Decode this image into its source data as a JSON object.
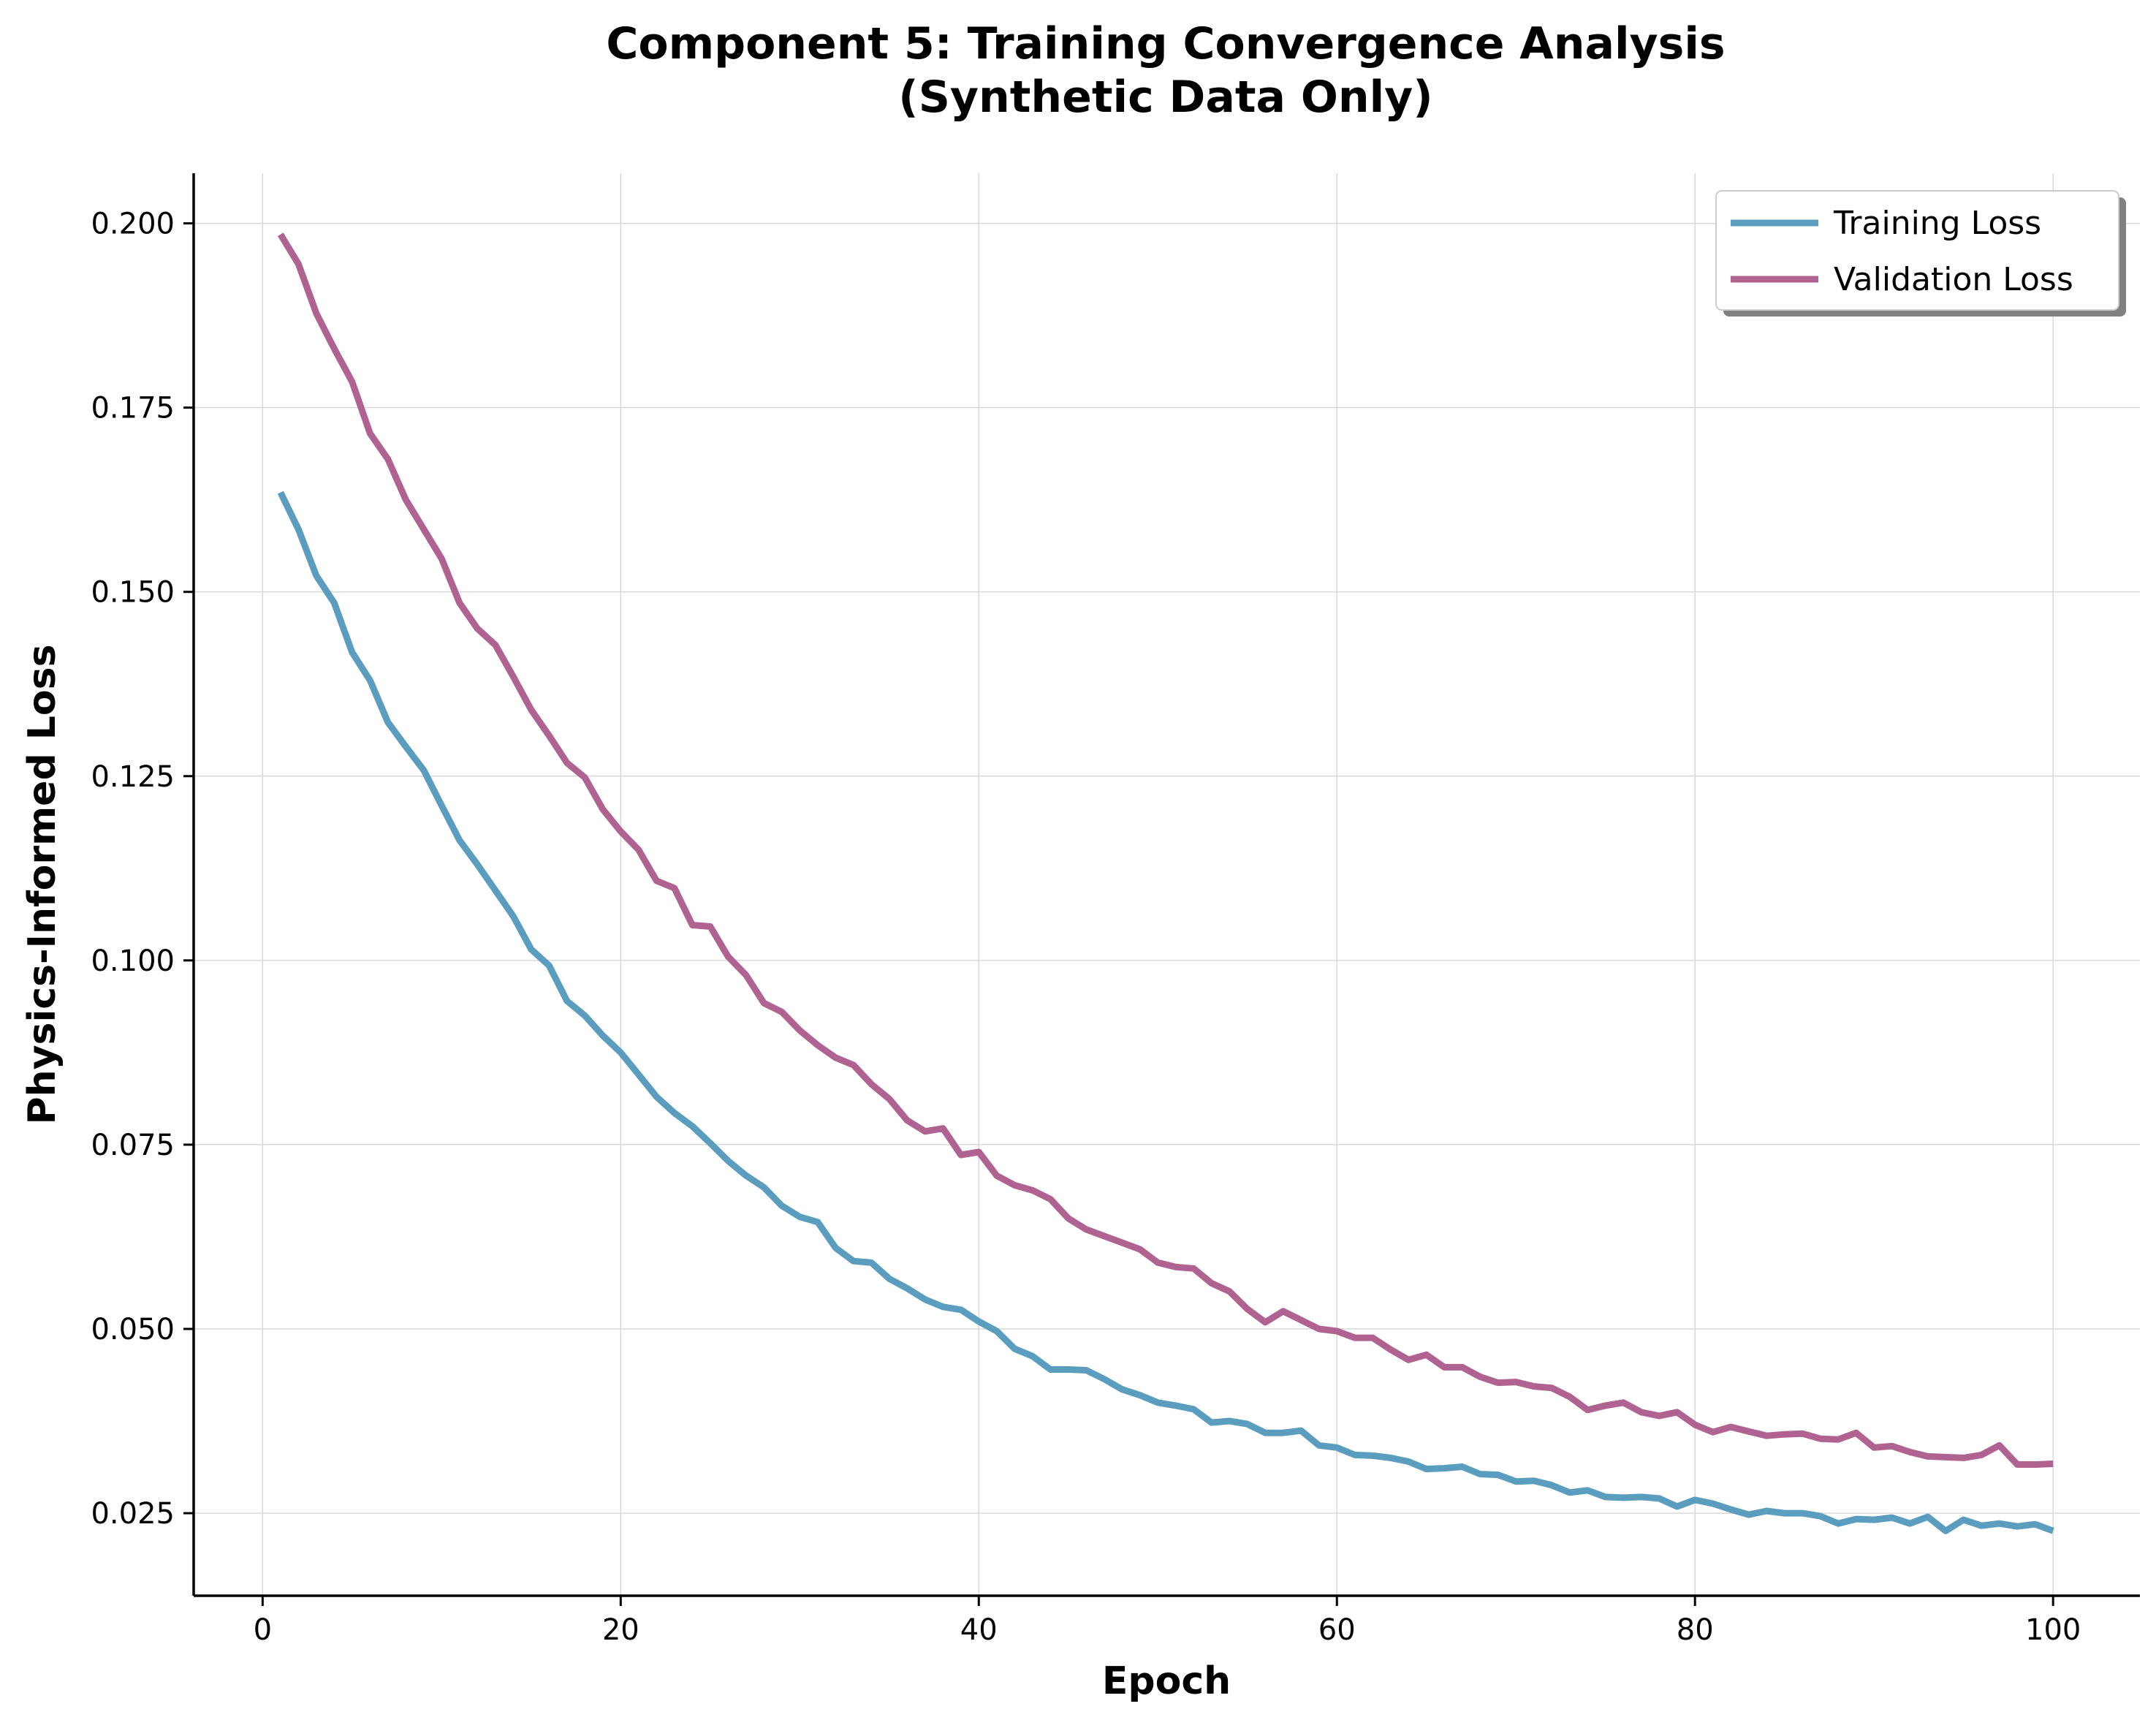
{
  "chart_data": {
    "type": "line",
    "title": "Component 5: Training Convergence Analysis",
    "subtitle": "(Synthetic Data Only)",
    "xlabel": "Epoch",
    "ylabel": "Physics-Informed Loss",
    "xlim": [
      -3.85,
      104.85
    ],
    "ylim": [
      0.0138,
      0.2068
    ],
    "xticks": [
      0,
      20,
      40,
      60,
      80,
      100
    ],
    "xtick_labels": [
      "0",
      "20",
      "40",
      "60",
      "80",
      "100"
    ],
    "yticks": [
      0.025,
      0.05,
      0.075,
      0.1,
      0.125,
      0.15,
      0.175,
      0.2
    ],
    "ytick_labels": [
      "0.025",
      "0.050",
      "0.075",
      "0.100",
      "0.125",
      "0.150",
      "0.175",
      "0.200"
    ],
    "grid": true,
    "legend_position": "top-right",
    "series": [
      {
        "name": "Training Loss",
        "color": "#5b9dbf",
        "x": [
          1,
          2,
          3,
          4,
          5,
          6,
          7,
          8,
          9,
          10,
          11,
          12,
          13,
          14,
          15,
          16,
          17,
          18,
          19,
          20,
          21,
          22,
          23,
          24,
          25,
          26,
          27,
          28,
          29,
          30,
          31,
          32,
          33,
          34,
          35,
          36,
          37,
          38,
          39,
          40,
          41,
          42,
          43,
          44,
          45,
          46,
          47,
          48,
          49,
          50,
          51,
          52,
          53,
          54,
          55,
          56,
          57,
          58,
          59,
          60,
          61,
          62,
          63,
          64,
          65,
          66,
          67,
          68,
          69,
          70,
          71,
          72,
          73,
          74,
          75,
          76,
          77,
          78,
          79,
          80,
          81,
          82,
          83,
          84,
          85,
          86,
          87,
          88,
          89,
          90,
          91,
          92,
          93,
          94,
          95,
          96,
          97,
          98,
          99,
          100
        ],
        "values": [
          0.1635,
          0.1585,
          0.1522,
          0.1485,
          0.1418,
          0.138,
          0.1323,
          0.129,
          0.1258,
          0.121,
          0.1163,
          0.113,
          0.1095,
          0.106,
          0.1015,
          0.0993,
          0.0945,
          0.0925,
          0.0898,
          0.0875,
          0.0845,
          0.0815,
          0.0793,
          0.0775,
          0.0752,
          0.0728,
          0.0708,
          0.0692,
          0.0667,
          0.0652,
          0.0645,
          0.061,
          0.0592,
          0.059,
          0.0568,
          0.0555,
          0.054,
          0.053,
          0.0526,
          0.051,
          0.0497,
          0.0473,
          0.0463,
          0.0445,
          0.0445,
          0.0444,
          0.0432,
          0.0418,
          0.041,
          0.04,
          0.0396,
          0.0391,
          0.0373,
          0.0375,
          0.0371,
          0.0359,
          0.0359,
          0.0362,
          0.0342,
          0.0339,
          0.0329,
          0.0328,
          0.0325,
          0.032,
          0.031,
          0.0311,
          0.0313,
          0.0303,
          0.0302,
          0.0293,
          0.0294,
          0.0288,
          0.0278,
          0.0281,
          0.0272,
          0.0271,
          0.0272,
          0.027,
          0.0259,
          0.0268,
          0.0263,
          0.0255,
          0.0248,
          0.0253,
          0.025,
          0.025,
          0.0246,
          0.0236,
          0.0242,
          0.0241,
          0.0244,
          0.0236,
          0.0245,
          0.0226,
          0.0241,
          0.0233,
          0.0236,
          0.0232,
          0.0235,
          0.0226
        ]
      },
      {
        "name": "Validation Loss",
        "color": "#b06290",
        "x": [
          1,
          2,
          3,
          4,
          5,
          6,
          7,
          8,
          9,
          10,
          11,
          12,
          13,
          14,
          15,
          16,
          17,
          18,
          19,
          20,
          21,
          22,
          23,
          24,
          25,
          26,
          27,
          28,
          29,
          30,
          31,
          32,
          33,
          34,
          35,
          36,
          37,
          38,
          39,
          40,
          41,
          42,
          43,
          44,
          45,
          46,
          47,
          48,
          49,
          50,
          51,
          52,
          53,
          54,
          55,
          56,
          57,
          58,
          59,
          60,
          61,
          62,
          63,
          64,
          65,
          66,
          67,
          68,
          69,
          70,
          71,
          72,
          73,
          74,
          75,
          76,
          77,
          78,
          79,
          80,
          81,
          82,
          83,
          84,
          85,
          86,
          87,
          88,
          89,
          90,
          91,
          92,
          93,
          94,
          95,
          96,
          97,
          98,
          99,
          100
        ],
        "values": [
          0.1985,
          0.1945,
          0.1878,
          0.183,
          0.1785,
          0.1715,
          0.168,
          0.1625,
          0.1585,
          0.1545,
          0.1485,
          0.145,
          0.1428,
          0.1385,
          0.134,
          0.1305,
          0.1268,
          0.1248,
          0.1205,
          0.1175,
          0.115,
          0.1108,
          0.1098,
          0.1048,
          0.1046,
          0.1005,
          0.098,
          0.0942,
          0.093,
          0.0905,
          0.0885,
          0.0868,
          0.0858,
          0.0832,
          0.0812,
          0.0783,
          0.0768,
          0.0772,
          0.0736,
          0.074,
          0.0708,
          0.0695,
          0.0688,
          0.0676,
          0.065,
          0.0635,
          0.0626,
          0.0617,
          0.0608,
          0.059,
          0.0584,
          0.0582,
          0.0562,
          0.0551,
          0.0527,
          0.0509,
          0.0524,
          0.0512,
          0.05,
          0.0497,
          0.0488,
          0.0488,
          0.0472,
          0.0458,
          0.0465,
          0.0448,
          0.0448,
          0.0435,
          0.0427,
          0.0428,
          0.0422,
          0.042,
          0.0408,
          0.039,
          0.0396,
          0.04,
          0.0387,
          0.0382,
          0.0387,
          0.037,
          0.036,
          0.0367,
          0.0361,
          0.0355,
          0.0357,
          0.0358,
          0.0351,
          0.035,
          0.0359,
          0.0339,
          0.0341,
          0.0333,
          0.0327,
          0.0326,
          0.0325,
          0.0329,
          0.0342,
          0.0316,
          0.0316,
          0.0317
        ]
      }
    ]
  }
}
